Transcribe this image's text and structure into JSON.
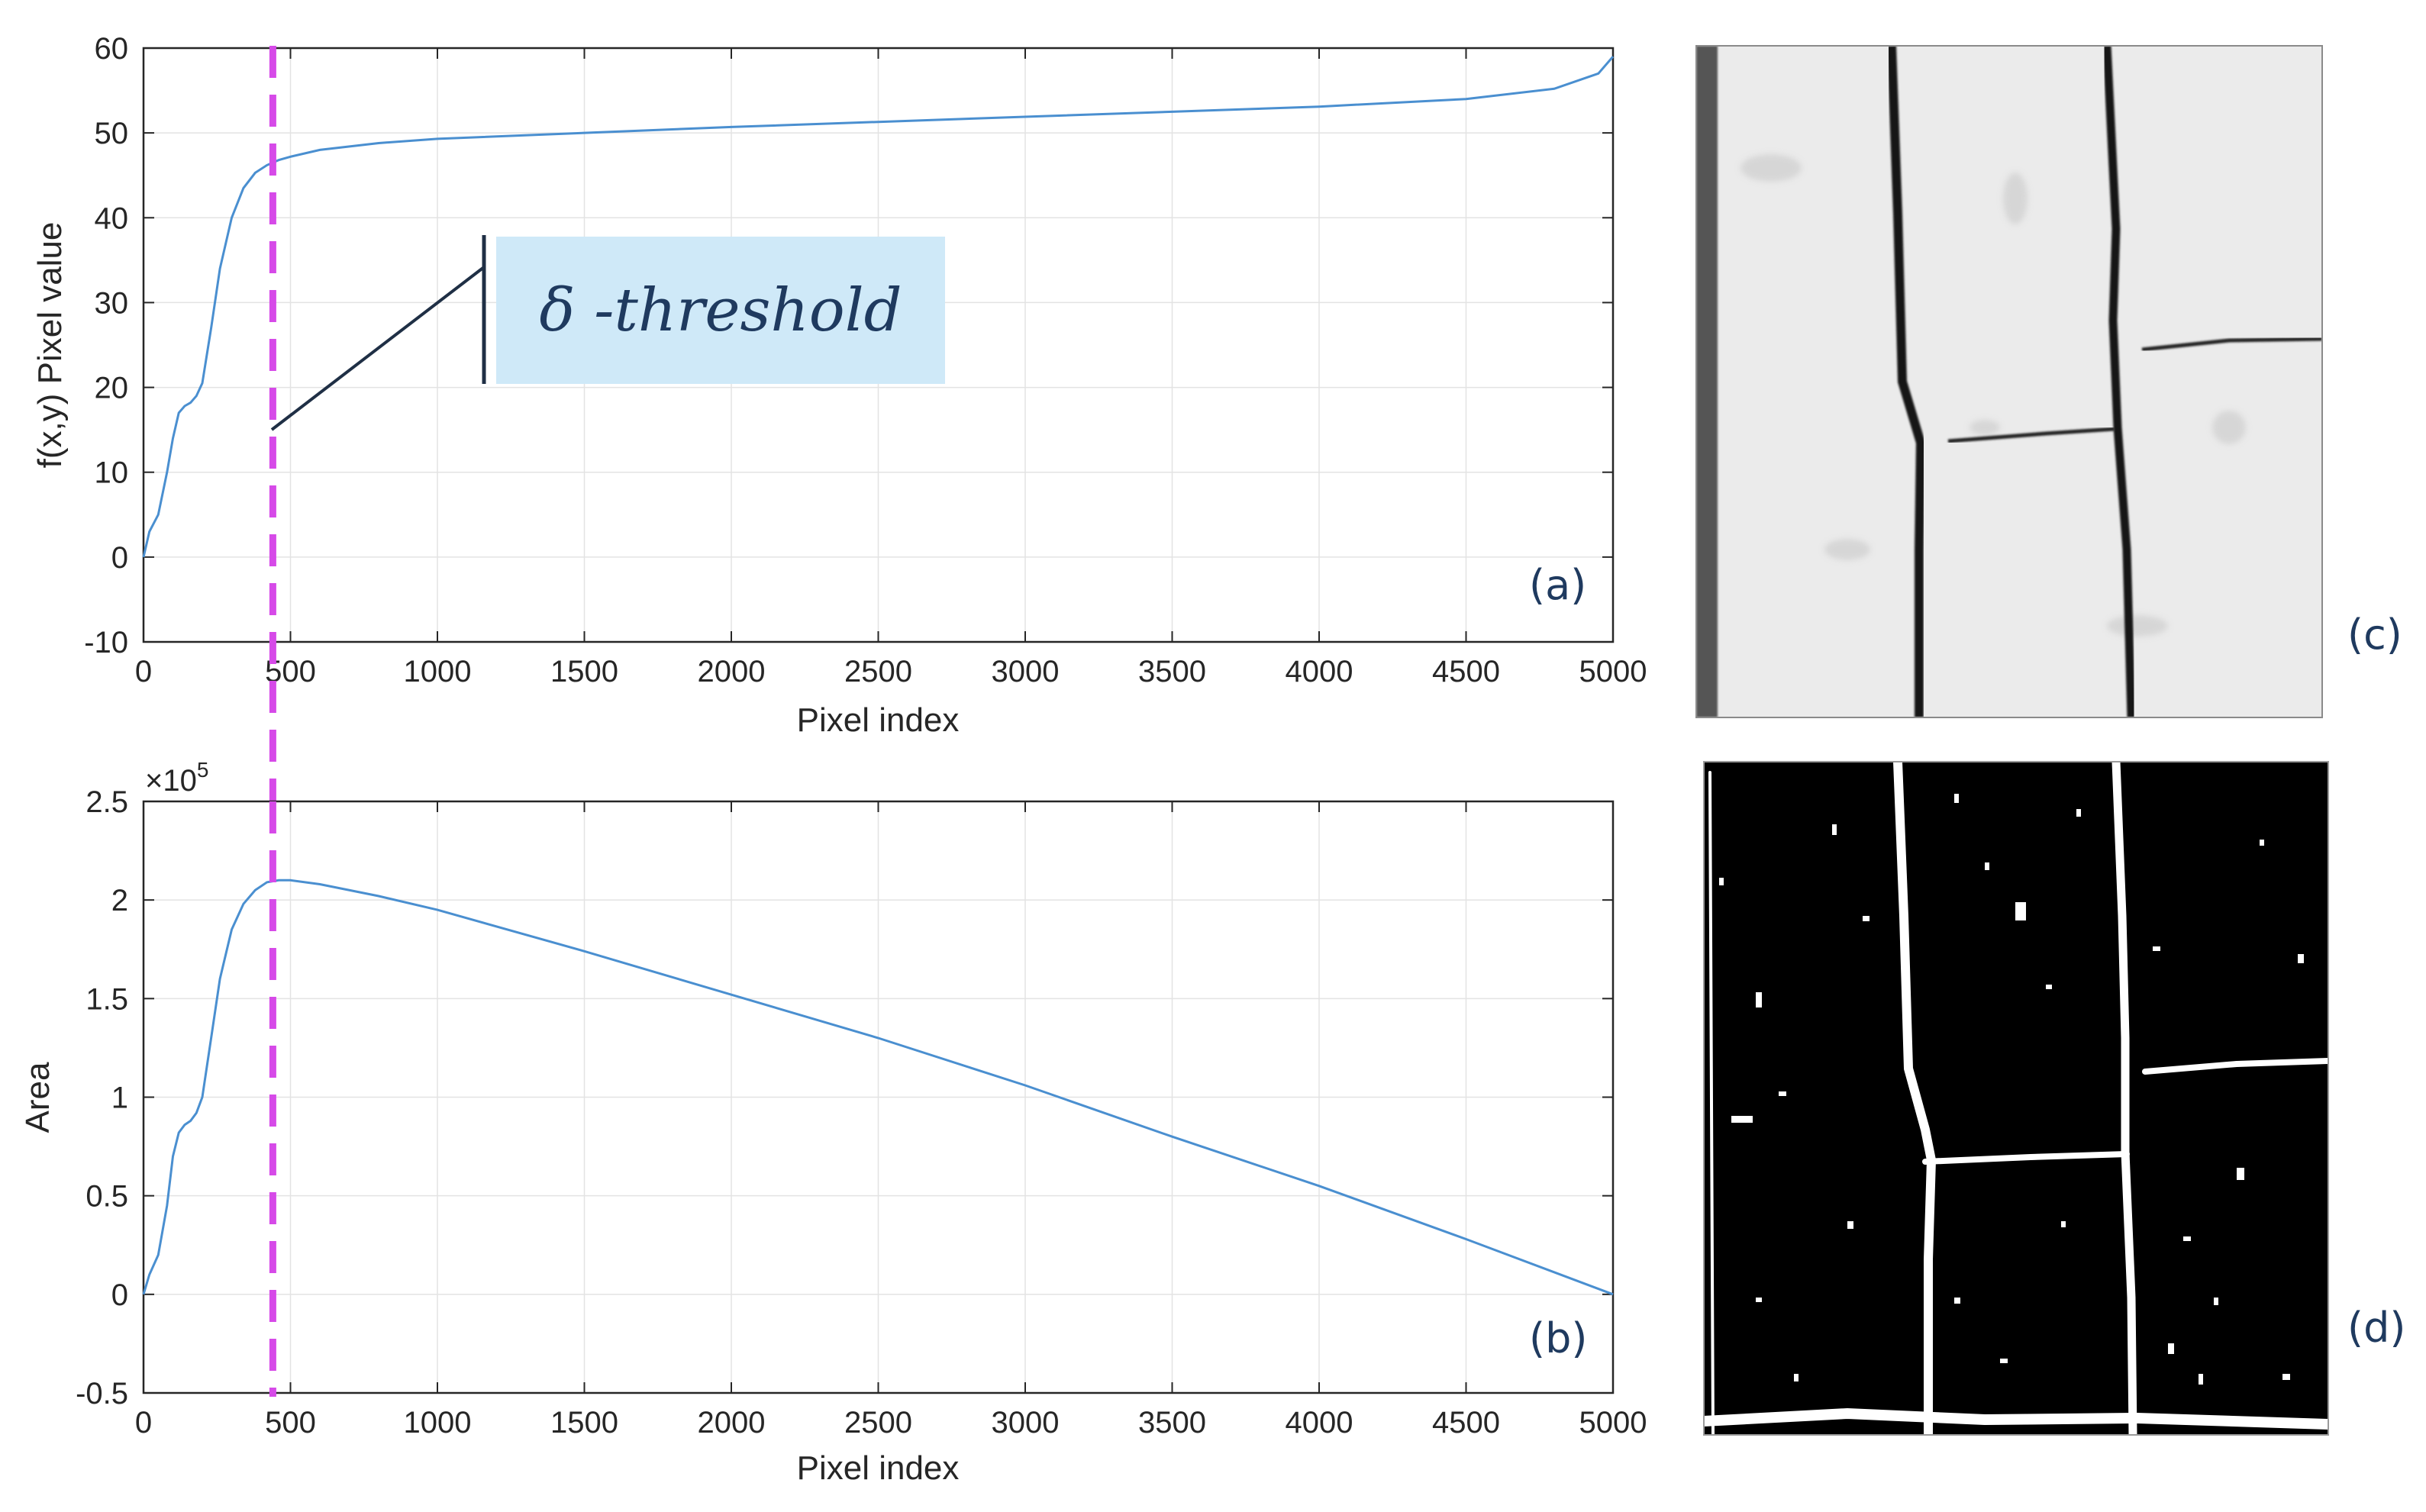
{
  "chart_data": [
    {
      "id": "a",
      "type": "line",
      "panel_label": "(a)",
      "xlabel": "Pixel index",
      "ylabel": "f(x,y) Pixel value",
      "xlim": [
        0,
        5000
      ],
      "ylim": [
        -10,
        60
      ],
      "xticks": [
        0,
        500,
        1000,
        1500,
        2000,
        2500,
        3000,
        3500,
        4000,
        4500,
        5000
      ],
      "yticks": [
        -10,
        0,
        10,
        20,
        30,
        40,
        50,
        60
      ],
      "grid": true,
      "x": [
        0,
        20,
        50,
        80,
        100,
        120,
        140,
        160,
        180,
        200,
        230,
        260,
        300,
        340,
        380,
        420,
        460,
        500,
        600,
        800,
        1000,
        1500,
        2000,
        2500,
        3000,
        3500,
        4000,
        4500,
        4800,
        4950,
        5000
      ],
      "y": [
        0,
        3,
        5,
        10,
        14,
        17,
        17.8,
        18.2,
        19,
        20.5,
        27,
        34,
        40,
        43.5,
        45.3,
        46.2,
        46.8,
        47.2,
        48,
        48.8,
        49.3,
        50,
        50.7,
        51.3,
        51.9,
        52.5,
        53.1,
        54,
        55.2,
        57,
        59
      ],
      "threshold_x": 440,
      "annotation": "δ -threshold",
      "line_color": "#4a8fd0",
      "threshold_color": "#d64ae8"
    },
    {
      "id": "b",
      "type": "line",
      "panel_label": "(b)",
      "xlabel": "Pixel index",
      "ylabel": "Area",
      "exponent_label": "×10",
      "exponent_power": "5",
      "xlim": [
        0,
        5000
      ],
      "ylim": [
        -0.5,
        2.5
      ],
      "xticks": [
        0,
        500,
        1000,
        1500,
        2000,
        2500,
        3000,
        3500,
        4000,
        4500,
        5000
      ],
      "yticks": [
        -0.5,
        0,
        0.5,
        1,
        1.5,
        2,
        2.5
      ],
      "grid": true,
      "x": [
        0,
        20,
        50,
        80,
        100,
        120,
        140,
        160,
        180,
        200,
        230,
        260,
        300,
        340,
        380,
        420,
        460,
        500,
        600,
        800,
        1000,
        1500,
        2000,
        2500,
        3000,
        3500,
        4000,
        4500,
        5000
      ],
      "y": [
        0,
        0.1,
        0.2,
        0.45,
        0.7,
        0.82,
        0.86,
        0.88,
        0.92,
        1.0,
        1.3,
        1.6,
        1.85,
        1.98,
        2.05,
        2.09,
        2.1,
        2.1,
        2.08,
        2.02,
        1.95,
        1.74,
        1.52,
        1.3,
        1.06,
        0.8,
        0.55,
        0.28,
        0
      ],
      "threshold_x": 440,
      "line_color": "#4a8fd0",
      "threshold_color": "#d64ae8"
    }
  ],
  "images": {
    "c": {
      "panel_label": "(c)"
    },
    "d": {
      "panel_label": "(d)"
    }
  }
}
